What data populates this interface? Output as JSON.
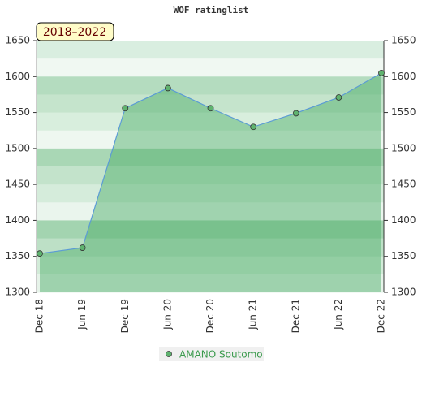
{
  "chart_data": {
    "type": "area",
    "title": "WOF ratinglist",
    "badge": "2018–2022",
    "categories": [
      "Dec 18",
      "Jun 19",
      "Dec 19",
      "Jun 20",
      "Dec 20",
      "Jun 21",
      "Dec 21",
      "Jun 22",
      "Dec 22"
    ],
    "series": [
      {
        "name": "AMANO Soutomo",
        "color": "#5fb36f",
        "values": [
          1354,
          1362,
          1556,
          1584,
          1556,
          1530,
          1549,
          1571,
          1605
        ]
      }
    ],
    "ylim": [
      1300,
      1650
    ],
    "yticks": [
      1300,
      1350,
      1400,
      1450,
      1500,
      1550,
      1600,
      1650
    ]
  }
}
